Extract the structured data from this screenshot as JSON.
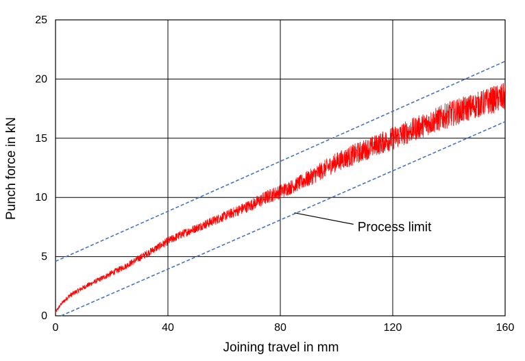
{
  "chart_data": {
    "type": "line",
    "title": "",
    "xlabel": "Joining travel in mm",
    "ylabel": "Punch force in kN",
    "xlim": [
      0,
      160
    ],
    "ylim": [
      0,
      25
    ],
    "xticks": [
      0,
      40,
      80,
      120,
      160
    ],
    "yticks": [
      0,
      5,
      10,
      15,
      20,
      25
    ],
    "grid": true,
    "series": [
      {
        "role": "measured punch force",
        "color": "#ff0000",
        "x": [
          0,
          2,
          5,
          10,
          15,
          20,
          25,
          30,
          35,
          40,
          45,
          50,
          55,
          60,
          65,
          70,
          75,
          80,
          85,
          90,
          95,
          100,
          105,
          110,
          115,
          120,
          125,
          130,
          135,
          140,
          145,
          150,
          155,
          160
        ],
        "y": [
          0.3,
          1.0,
          1.7,
          2.4,
          3.0,
          3.6,
          4.2,
          4.9,
          5.6,
          6.3,
          6.9,
          7.4,
          7.9,
          8.4,
          8.9,
          9.4,
          10.0,
          10.5,
          11.0,
          11.6,
          12.3,
          13.0,
          13.5,
          14.0,
          14.5,
          15.0,
          15.5,
          16.0,
          16.5,
          17.0,
          17.4,
          17.8,
          18.2,
          18.5
        ],
        "noise_amplitude": [
          0.15,
          0.15,
          0.2,
          0.2,
          0.2,
          0.25,
          0.25,
          0.3,
          0.3,
          0.35,
          0.35,
          0.35,
          0.4,
          0.4,
          0.45,
          0.5,
          0.6,
          0.6,
          0.6,
          0.7,
          0.75,
          0.8,
          0.9,
          0.9,
          0.9,
          1.0,
          1.0,
          1.0,
          1.05,
          1.1,
          1.1,
          1.1,
          1.15,
          1.2
        ]
      },
      {
        "role": "upper process limit",
        "style": "dashed",
        "color": "#4472c4",
        "x": [
          0,
          160
        ],
        "y": [
          4.6,
          21.5
        ]
      },
      {
        "role": "lower process limit",
        "style": "dashed",
        "color": "#4472c4",
        "x": [
          2,
          160
        ],
        "y": [
          0,
          16.4
        ]
      }
    ],
    "annotations": [
      {
        "text": "Process limit",
        "x": 107,
        "y": 7.5,
        "points_to": {
          "x": 85,
          "y": 8.7
        }
      }
    ]
  }
}
